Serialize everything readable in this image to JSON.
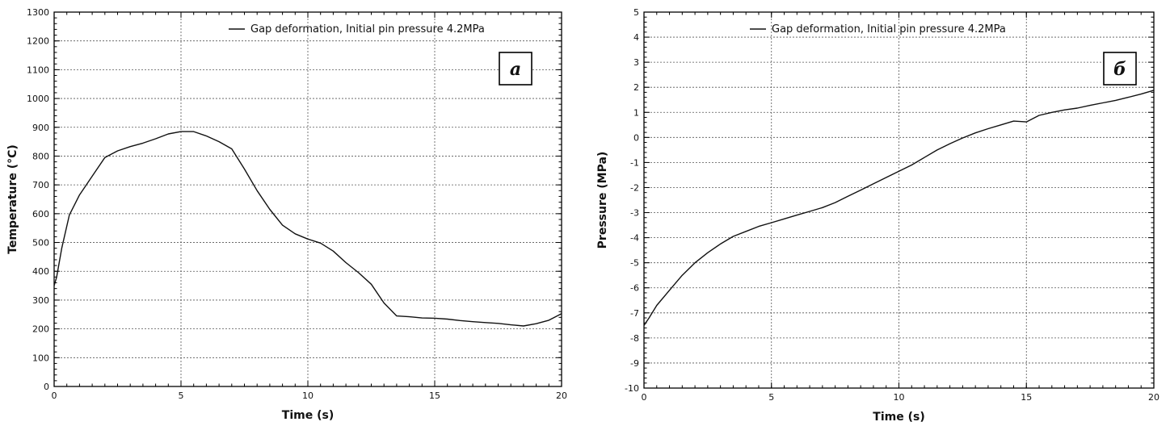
{
  "chart_data": [
    {
      "type": "line",
      "panel_label": "a",
      "xlabel": "Time (s)",
      "ylabel": "Temperature (°C)",
      "xlim": [
        0,
        20
      ],
      "ylim": [
        0,
        1300
      ],
      "x_ticks": [
        "0",
        "5",
        "10",
        "15",
        "20"
      ],
      "y_ticks": [
        "0",
        "100",
        "200",
        "300",
        "400",
        "500",
        "600",
        "700",
        "800",
        "900",
        "1000",
        "1100",
        "1200",
        "1300"
      ],
      "grid": true,
      "legend_position": "top-right",
      "series": [
        {
          "name": "Gap deformation, Initial pin pressure 4.2MPa",
          "x": [
            0,
            0.1,
            0.3,
            0.6,
            1.0,
            1.5,
            2.0,
            2.5,
            3.0,
            3.5,
            4.0,
            4.5,
            5.0,
            5.5,
            6.0,
            6.5,
            7.0,
            7.5,
            8.0,
            8.5,
            9.0,
            9.5,
            10.0,
            10.5,
            11.0,
            11.5,
            12.0,
            12.5,
            13.0,
            13.5,
            14.0,
            14.5,
            15.0,
            15.5,
            16.0,
            16.5,
            17.0,
            17.5,
            18.0,
            18.5,
            19.0,
            19.5,
            20.0
          ],
          "y": [
            350,
            380,
            480,
            595,
            665,
            730,
            795,
            818,
            833,
            845,
            860,
            877,
            885,
            885,
            870,
            850,
            825,
            755,
            680,
            615,
            560,
            530,
            512,
            498,
            470,
            430,
            395,
            355,
            290,
            245,
            242,
            238,
            237,
            234,
            229,
            225,
            222,
            219,
            214,
            210,
            218,
            230,
            253
          ]
        }
      ]
    },
    {
      "type": "line",
      "panel_label": "б",
      "xlabel": "Time (s)",
      "ylabel": "Pressure (MPa)",
      "xlim": [
        0,
        20
      ],
      "ylim": [
        -10,
        5
      ],
      "x_ticks": [
        "0",
        "5",
        "10",
        "15",
        "20"
      ],
      "y_ticks": [
        "-10",
        "-9",
        "-8",
        "-7",
        "-6",
        "-5",
        "-4",
        "-3",
        "-2",
        "-1",
        "0",
        "1",
        "2",
        "3",
        "4",
        "5"
      ],
      "grid": true,
      "legend_position": "top-right",
      "series": [
        {
          "name": "Gap deformation, Initial pin pressure 4.2MPa",
          "x": [
            0,
            0.2,
            0.5,
            1.0,
            1.5,
            2.0,
            2.5,
            3.0,
            3.5,
            4.0,
            4.5,
            5.0,
            5.5,
            6.0,
            6.5,
            7.0,
            7.5,
            8.0,
            8.5,
            9.0,
            9.5,
            10.0,
            10.5,
            11.0,
            11.5,
            12.0,
            12.5,
            13.0,
            13.5,
            14.0,
            14.5,
            15.0,
            15.5,
            16.0,
            16.5,
            17.0,
            17.5,
            18.0,
            18.5,
            19.0,
            19.5,
            20.0
          ],
          "y": [
            -7.5,
            -7.2,
            -6.7,
            -6.1,
            -5.5,
            -5.0,
            -4.6,
            -4.25,
            -3.95,
            -3.75,
            -3.55,
            -3.4,
            -3.25,
            -3.1,
            -2.95,
            -2.8,
            -2.6,
            -2.35,
            -2.1,
            -1.85,
            -1.6,
            -1.35,
            -1.1,
            -0.8,
            -0.5,
            -0.25,
            -0.02,
            0.18,
            0.35,
            0.5,
            0.65,
            0.62,
            0.88,
            1.0,
            1.1,
            1.17,
            1.28,
            1.38,
            1.48,
            1.6,
            1.73,
            1.88
          ]
        }
      ]
    }
  ]
}
